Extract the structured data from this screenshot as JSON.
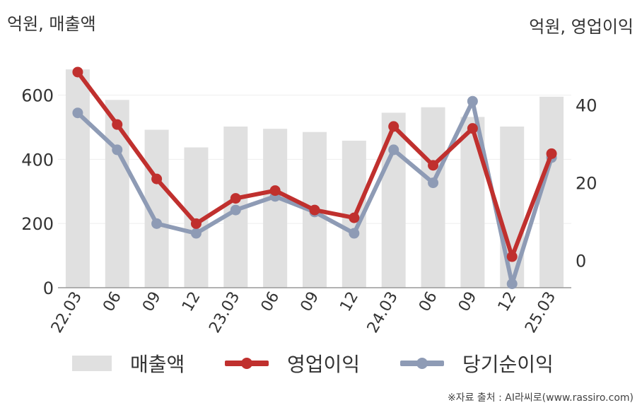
{
  "units": {
    "left": "억원, 매출액",
    "right": "억원, 영업이익"
  },
  "colors": {
    "revenue": "#e0e0e0",
    "operating_profit": "#c0302e",
    "net_income": "#8e9bb5",
    "axis": "#999999",
    "grid": "#eeeeee",
    "text": "#333333"
  },
  "chart_data": {
    "type": "bar",
    "categories": [
      "22.03",
      "06",
      "09",
      "12",
      "23.03",
      "06",
      "09",
      "12",
      "24.03",
      "06",
      "09",
      "12",
      "25.03"
    ],
    "y_left": {
      "ticks": [
        "0",
        "200",
        "400",
        "600"
      ],
      "lim": [
        0,
        720
      ]
    },
    "y_right": {
      "ticks": [
        "0",
        "20",
        "40"
      ],
      "lim": [
        -7,
        52.5
      ]
    },
    "series": [
      {
        "name": "매출액",
        "type": "bar",
        "axis": "left",
        "values": [
          680,
          585,
          492,
          437,
          502,
          495,
          485,
          458,
          545,
          562,
          532,
          502,
          595
        ]
      },
      {
        "name": "영업이익",
        "type": "line",
        "axis": "right",
        "values": [
          48.5,
          35,
          21,
          9.5,
          16,
          18,
          13,
          11,
          34.5,
          24.5,
          34,
          1,
          27.5
        ]
      },
      {
        "name": "당기순이익",
        "type": "line",
        "axis": "right",
        "values": [
          38,
          28.5,
          9.5,
          7,
          13,
          16.5,
          12.5,
          7,
          28.5,
          20,
          41,
          -6,
          26.5
        ]
      }
    ],
    "grid": true,
    "legend": "bottom"
  },
  "legend": [
    {
      "label": "매출액"
    },
    {
      "label": "영업이익"
    },
    {
      "label": "당기순이익"
    }
  ],
  "source": "※자료 출처 : AI라씨로(www.rassiro.com)"
}
